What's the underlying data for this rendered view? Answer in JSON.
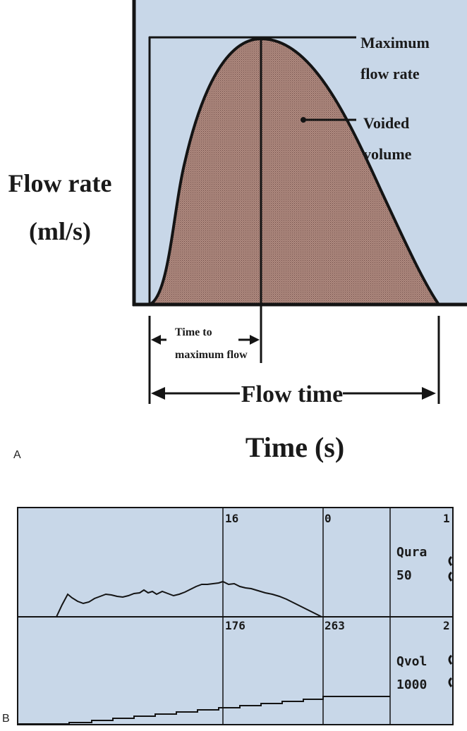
{
  "panelA": {
    "label": "A",
    "y_axis_label_line1": "Flow rate",
    "y_axis_label_line2": "(ml/s)",
    "x_axis_label": "Time (s)",
    "annotation_max_line1": "Maximum",
    "annotation_max_line2": "flow rate",
    "annotation_vol_line1": "Voided",
    "annotation_vol_line2": "volume",
    "annotation_ttm_line1": "Time to",
    "annotation_ttm_line2": "maximum flow",
    "annotation_flowtime": "Flow time",
    "colors": {
      "background": "#c8d7e8",
      "fill": "#a07c74",
      "line": "#141414"
    }
  },
  "panelB": {
    "label": "B",
    "top_marker_left": "16",
    "top_marker_right": "0",
    "top_channel_num": "1",
    "top_channel_name": "Qura",
    "top_channel_scale": "50",
    "bottom_marker_left": "176",
    "bottom_marker_right": "263",
    "bottom_channel_num": "2",
    "bottom_channel_name": "Qvol",
    "bottom_channel_scale": "1000",
    "colors": {
      "background": "#c8d7e8",
      "line": "#141414"
    }
  }
}
